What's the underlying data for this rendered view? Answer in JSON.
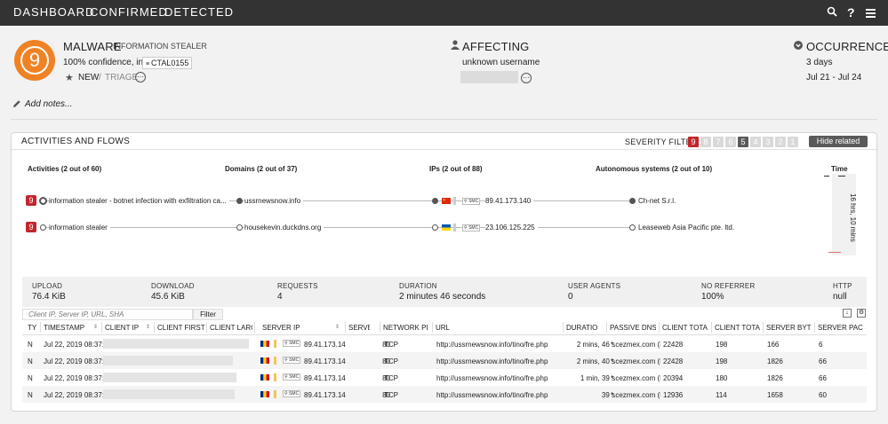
{
  "nav": {
    "tabs": [
      "DASHBOARD",
      "CONFIRMED",
      "DETECTED"
    ],
    "icons": [
      "search-icon",
      "help-icon",
      "menu-icon"
    ]
  },
  "header": {
    "badge_value": "9",
    "title": "MALWARE",
    "subtitle": "INFORMATION STEALER",
    "confidence": "100% confidence, in",
    "code": "CTAL0155",
    "status_new": "NEW",
    "status_sep": "/",
    "status_triage": "TRIAGE",
    "affecting_title": "AFFECTING",
    "affecting_user": "unknown username",
    "occurrence_title": "OCCURRENCE",
    "occurrence_days": "3 days",
    "occurrence_range": "Jul 21 - Jul 24",
    "add_notes": "Add notes..."
  },
  "panel": {
    "title": "ACTIVITIES AND FLOWS",
    "severity_filter_label": "SEVERITY FILTER:",
    "severity_levels": [
      "9",
      "8",
      "7",
      "6",
      "5",
      "4",
      "3",
      "2",
      "1"
    ],
    "hide_related": "Hide related",
    "colors": {
      "severity_active": "#c0272d",
      "severity_mid": "#5a5a5a",
      "severity_dim": "#d9d9d9",
      "badge": "#f08224"
    }
  },
  "flows": {
    "headers": {
      "activities": "Activities (2 out of 60)",
      "domains": "Domains (2 out of 37)",
      "ips": "IPs (2 out of 88)",
      "as": "Autonomous systems (2 out of 10)",
      "time": "Time"
    },
    "rows": [
      {
        "severity": "9",
        "activity": "information stealer - botnet infection with exfiltration ca...",
        "domain": "ussrnewsnow.info",
        "smc": "SMC",
        "ip": "89.41.173.140",
        "as": "Ch-net S.r.l."
      },
      {
        "severity": "9",
        "activity": "information stealer",
        "domain": "housekevin.duckdns.org",
        "smc": "SMC",
        "ip": "23.106.125.225",
        "as": "Leaseweb Asia Pacific pte. ltd."
      }
    ],
    "time_span": "16 hrs, 10 mins"
  },
  "stats": [
    {
      "label": "UPLOAD",
      "value": "76.4 KiB"
    },
    {
      "label": "DOWNLOAD",
      "value": "45.6 KiB"
    },
    {
      "label": "REQUESTS",
      "value": "4"
    },
    {
      "label": "DURATION",
      "value": "2 minutes 46 seconds"
    },
    {
      "label": "USER AGENTS",
      "value": "0"
    },
    {
      "label": "NO REFERRER",
      "value": "100%"
    },
    {
      "label": "HTTP",
      "value": "null"
    }
  ],
  "filter": {
    "placeholder": "Client IP, Server IP, URL, SHA",
    "button": "Filter"
  },
  "table": {
    "columns": [
      "TY",
      "TIMESTAMP",
      "CLIENT IP",
      "CLIENT FIRST",
      "CLIENT LARG",
      "SERVER IP",
      "SERVE",
      "NETWORK PI",
      "URL",
      "DURATIO",
      "PASSIVE DNS",
      "CLIENT TOTA",
      "CLIENT TOTA",
      "SERVER BYT",
      "SERVER PAC"
    ],
    "rows": [
      {
        "type": "N",
        "timestamp": "Jul 22, 2019 08:37:",
        "smc": "SMC",
        "server_ip": "89.41.173.14",
        "port": "80",
        "proto": "TCP",
        "url": "http://ussrnewsnow.info/tino/fre.php",
        "duration": "2 mins, 46 s",
        "dns": "*.cezmex.com (F",
        "c1": "22428",
        "c2": "198",
        "s1": "166",
        "s2": "6"
      },
      {
        "type": "N",
        "timestamp": "Jul 22, 2019 08:37:",
        "smc": "SMC",
        "server_ip": "89.41.173.14",
        "port": "80",
        "proto": "TCP",
        "url": "http://ussrnewsnow.info/tino/fre.php",
        "duration": "2 mins, 40 s",
        "dns": "*.cezmex.com (F",
        "c1": "22428",
        "c2": "198",
        "s1": "1826",
        "s2": "66"
      },
      {
        "type": "N",
        "timestamp": "Jul 22, 2019 08:37:",
        "smc": "SMC",
        "server_ip": "89.41.173.14",
        "port": "80",
        "proto": "TCP",
        "url": "http://ussrnewsnow.info/tino/fre.php",
        "duration": "1 min, 39 s",
        "dns": "*.cezmex.com (F",
        "c1": "20394",
        "c2": "180",
        "s1": "1826",
        "s2": "66"
      },
      {
        "type": "N",
        "timestamp": "Jul 22, 2019 08:37:",
        "smc": "SMC",
        "server_ip": "89.41.173.14",
        "port": "80",
        "proto": "TCP",
        "url": "http://ussrnewsnow.info/tino/fre.php",
        "duration": "39 s",
        "dns": "*.cezmex.com (F",
        "c1": "12936",
        "c2": "114",
        "s1": "1658",
        "s2": "60"
      }
    ]
  }
}
